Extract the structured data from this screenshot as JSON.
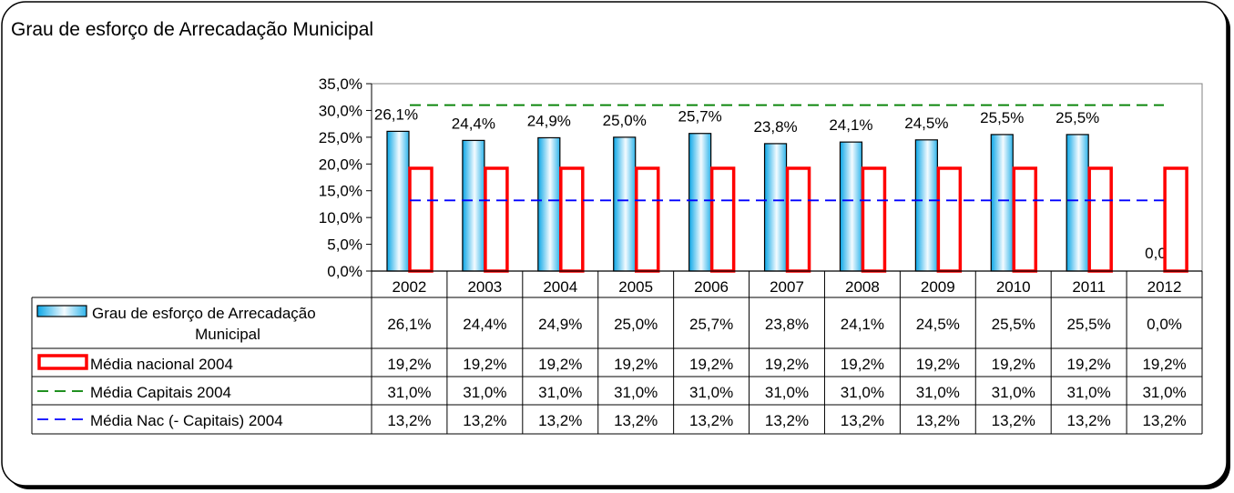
{
  "chart_data": {
    "type": "bar",
    "title": "Grau de esforço de Arrecadação Municipal",
    "categories": [
      "2002",
      "2003",
      "2004",
      "2005",
      "2006",
      "2007",
      "2008",
      "2009",
      "2010",
      "2011",
      "2012"
    ],
    "ylim": [
      0,
      35
    ],
    "yticks": [
      0,
      5,
      10,
      15,
      20,
      25,
      30,
      35
    ],
    "ytick_labels": [
      "0,0%",
      "5,0%",
      "10,0%",
      "15,0%",
      "20,0%",
      "25,0%",
      "30,0%",
      "35,0%"
    ],
    "series": [
      {
        "name": "Grau de esforço de Arrecadação Municipal",
        "kind": "bar",
        "values": [
          26.1,
          24.4,
          24.9,
          25.0,
          25.7,
          23.8,
          24.1,
          24.5,
          25.5,
          25.5,
          0.0
        ],
        "labels": [
          "26,1%",
          "24,4%",
          "24,9%",
          "25,0%",
          "25,7%",
          "23,8%",
          "24,1%",
          "24,5%",
          "25,5%",
          "25,5%",
          "0,0%"
        ],
        "color": "#6ccff6"
      },
      {
        "name": "Média nacional 2004",
        "kind": "bar-outline",
        "values": [
          19.2,
          19.2,
          19.2,
          19.2,
          19.2,
          19.2,
          19.2,
          19.2,
          19.2,
          19.2,
          19.2
        ],
        "labels": [
          "19,2%",
          "19,2%",
          "19,2%",
          "19,2%",
          "19,2%",
          "19,2%",
          "19,2%",
          "19,2%",
          "19,2%",
          "19,2%",
          "19,2%"
        ],
        "color": "#ff0000"
      },
      {
        "name": "Média Capitais 2004",
        "kind": "dashed-line",
        "values": [
          31.0,
          31.0,
          31.0,
          31.0,
          31.0,
          31.0,
          31.0,
          31.0,
          31.0,
          31.0,
          31.0
        ],
        "labels": [
          "31,0%",
          "31,0%",
          "31,0%",
          "31,0%",
          "31,0%",
          "31,0%",
          "31,0%",
          "31,0%",
          "31,0%",
          "31,0%",
          "31,0%"
        ],
        "color": "#008000"
      },
      {
        "name": "Média Nac (- Capitais) 2004",
        "kind": "dashed-line",
        "values": [
          13.2,
          13.2,
          13.2,
          13.2,
          13.2,
          13.2,
          13.2,
          13.2,
          13.2,
          13.2,
          13.2
        ],
        "labels": [
          "13,2%",
          "13,2%",
          "13,2%",
          "13,2%",
          "13,2%",
          "13,2%",
          "13,2%",
          "13,2%",
          "13,2%",
          "13,2%",
          "13,2%"
        ],
        "color": "#0000ff"
      }
    ],
    "legend": "data-table-below"
  }
}
